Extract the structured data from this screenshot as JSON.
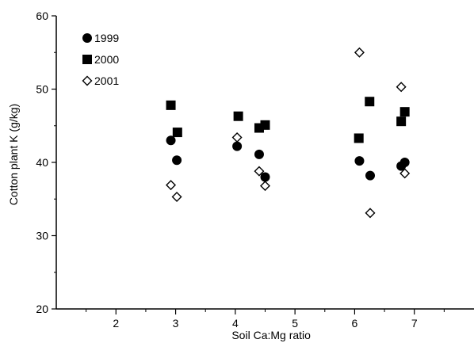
{
  "chart_data": {
    "type": "scatter",
    "xlabel": "Soil Ca:Mg ratio",
    "ylabel": "Cotton plant  K (g/kg)",
    "xlim": [
      1,
      8
    ],
    "ylim": [
      20,
      60
    ],
    "x_ticks": [
      2,
      3,
      4,
      5,
      6,
      7
    ],
    "y_ticks": [
      20,
      30,
      40,
      50,
      60
    ],
    "x_tick_labels": [
      "2",
      "3",
      "4",
      "5",
      "6",
      "7"
    ],
    "y_tick_labels": [
      "20",
      "30",
      "40",
      "50",
      "60"
    ],
    "grid": false,
    "legend_position": "top-left",
    "series": [
      {
        "name": "1999",
        "marker": "filled-circle",
        "color": "#000000",
        "points": [
          {
            "x": 2.92,
            "y": 43.0
          },
          {
            "x": 3.02,
            "y": 40.3
          },
          {
            "x": 4.03,
            "y": 42.2
          },
          {
            "x": 4.4,
            "y": 41.1
          },
          {
            "x": 4.5,
            "y": 38.0
          },
          {
            "x": 6.08,
            "y": 40.2
          },
          {
            "x": 6.26,
            "y": 38.2
          },
          {
            "x": 6.78,
            "y": 39.5
          },
          {
            "x": 6.84,
            "y": 40.0
          }
        ]
      },
      {
        "name": "2000",
        "marker": "filled-square",
        "color": "#000000",
        "points": [
          {
            "x": 2.92,
            "y": 47.8
          },
          {
            "x": 3.03,
            "y": 44.1
          },
          {
            "x": 4.05,
            "y": 46.3
          },
          {
            "x": 4.4,
            "y": 44.7
          },
          {
            "x": 4.5,
            "y": 45.1
          },
          {
            "x": 6.07,
            "y": 43.3
          },
          {
            "x": 6.25,
            "y": 48.3
          },
          {
            "x": 6.78,
            "y": 45.6
          },
          {
            "x": 6.84,
            "y": 46.9
          }
        ]
      },
      {
        "name": "2001",
        "marker": "open-diamond",
        "color": "#000000",
        "points": [
          {
            "x": 2.92,
            "y": 36.9
          },
          {
            "x": 3.02,
            "y": 35.3
          },
          {
            "x": 4.03,
            "y": 43.4
          },
          {
            "x": 4.4,
            "y": 38.8
          },
          {
            "x": 4.5,
            "y": 36.8
          },
          {
            "x": 6.08,
            "y": 55.0
          },
          {
            "x": 6.26,
            "y": 33.1
          },
          {
            "x": 6.78,
            "y": 50.3
          },
          {
            "x": 6.84,
            "y": 38.5
          }
        ]
      }
    ]
  }
}
